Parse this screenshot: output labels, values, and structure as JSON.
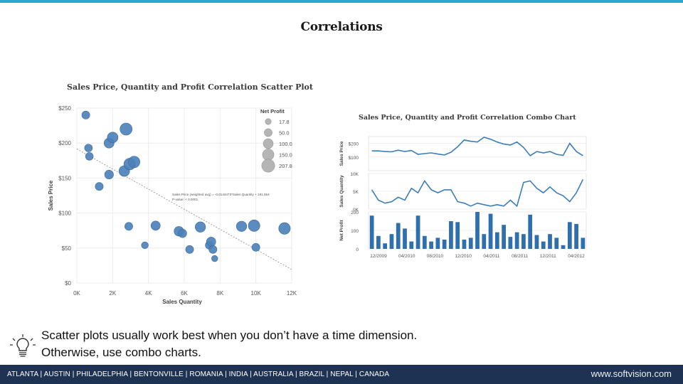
{
  "slide": {
    "title": "Correlations",
    "caption_line1": "Scatter plots usually work best when you don’t have a time dimension.",
    "caption_line2": "Otherwise, use combo charts."
  },
  "footer": {
    "cities": "ATLANTA | AUSTIN | PHILADELPHIA | BENTONVILLE | ROMANIA | INDIA | AUSTRALIA | BRAZIL | NEPAL | CANADA",
    "website": "www.softvision.com",
    "background": "#1e3353"
  },
  "theme": {
    "accent_bar": "#2aa8cf",
    "marker": "#4a80b8",
    "bar": "#2f6fae",
    "line": "#3a7dbd"
  },
  "icons": {
    "caption_icon": "lightbulb-icon"
  },
  "chart_data": [
    {
      "type": "scatter",
      "title": "Sales Price, Quantity and Profit Correlation Scatter Plot",
      "xlabel": "Sales Quantity",
      "ylabel": "Sales Price",
      "xlim": [
        0,
        12000
      ],
      "ylim": [
        0,
        250
      ],
      "xticks": [
        "0K",
        "2K",
        "4K",
        "6K",
        "8K",
        "10K",
        "12K"
      ],
      "yticks": [
        "$0",
        "$50",
        "$100",
        "$150",
        "$200",
        "$250"
      ],
      "grid": true,
      "legend": {
        "title": "Net Profit",
        "placement": "top-right",
        "entries": [
          {
            "label": "17.8",
            "value": 17.8
          },
          {
            "label": "50.0",
            "value": 50
          },
          {
            "label": "100.0",
            "value": 100
          },
          {
            "label": "150.0",
            "value": 150
          },
          {
            "label": "207.8",
            "value": 207.8
          }
        ]
      },
      "trend_annotation": [
        "Sales Price (weighted avg) = -0.0143473*Sales Quantity + 191.554",
        "P-value: < 0.0001"
      ],
      "trend": {
        "intercept": 191.554,
        "slope": -0.0143473
      },
      "points": [
        {
          "x": 500,
          "y": 240,
          "profit": 50
        },
        {
          "x": 650,
          "y": 193,
          "profit": 45
        },
        {
          "x": 700,
          "y": 181,
          "profit": 45
        },
        {
          "x": 1250,
          "y": 138,
          "profit": 50
        },
        {
          "x": 1800,
          "y": 200,
          "profit": 100
        },
        {
          "x": 2000,
          "y": 208,
          "profit": 120
        },
        {
          "x": 1800,
          "y": 155,
          "profit": 70
        },
        {
          "x": 2650,
          "y": 160,
          "profit": 120
        },
        {
          "x": 2750,
          "y": 220,
          "profit": 170
        },
        {
          "x": 2950,
          "y": 170,
          "profit": 150
        },
        {
          "x": 3200,
          "y": 173,
          "profit": 150
        },
        {
          "x": 2900,
          "y": 81,
          "profit": 50
        },
        {
          "x": 3800,
          "y": 54,
          "profit": 30
        },
        {
          "x": 4400,
          "y": 82,
          "profit": 80
        },
        {
          "x": 5700,
          "y": 74,
          "profit": 90
        },
        {
          "x": 5900,
          "y": 71,
          "profit": 60
        },
        {
          "x": 6300,
          "y": 48,
          "profit": 50
        },
        {
          "x": 6900,
          "y": 80,
          "profit": 110
        },
        {
          "x": 7400,
          "y": 54,
          "profit": 50
        },
        {
          "x": 7500,
          "y": 59,
          "profit": 80
        },
        {
          "x": 7600,
          "y": 48,
          "profit": 50
        },
        {
          "x": 7700,
          "y": 35,
          "profit": 20
        },
        {
          "x": 9200,
          "y": 81,
          "profit": 110
        },
        {
          "x": 9900,
          "y": 82,
          "profit": 150
        },
        {
          "x": 10000,
          "y": 51,
          "profit": 50
        },
        {
          "x": 11600,
          "y": 78,
          "profit": 150
        }
      ]
    },
    {
      "type": "line",
      "title": "Sales Price, Quantity and Profit Correlation Combo Chart",
      "x_tick_labels": [
        "12/2009",
        "04/2010",
        "08/2010",
        "12/2010",
        "04/2011",
        "08/2011",
        "12/2011",
        "04/2012"
      ],
      "series": [
        {
          "name": "Sales Price",
          "type": "line",
          "ylim": [
            0,
            250
          ],
          "yticks": [
            "$200",
            "$100"
          ],
          "values": [
            145,
            145,
            140,
            138,
            150,
            140,
            148,
            120,
            125,
            130,
            122,
            115,
            135,
            175,
            225,
            215,
            210,
            245,
            230,
            210,
            195,
            188,
            210,
            170,
            110,
            140,
            130,
            140,
            120,
            112,
            200,
            140,
            110
          ]
        },
        {
          "name": "Sales Quantity",
          "type": "line",
          "ylim": [
            0,
            12000
          ],
          "yticks": [
            "10K",
            "5K",
            "0K"
          ],
          "values": [
            6500,
            3000,
            2000,
            2500,
            4000,
            3000,
            7000,
            5500,
            9500,
            6500,
            5500,
            6500,
            6500,
            2500,
            2000,
            1000,
            2000,
            1500,
            1000,
            1500,
            1000,
            3000,
            1000,
            9000,
            9500,
            7000,
            5500,
            7500,
            5500,
            4500,
            2500,
            5500,
            10000
          ]
        },
        {
          "name": "Net Profit",
          "type": "bar",
          "ylim": [
            0,
            200
          ],
          "yticks": [
            "200",
            "100",
            "0"
          ],
          "values": [
            180,
            70,
            30,
            80,
            140,
            110,
            40,
            180,
            70,
            40,
            60,
            50,
            150,
            145,
            50,
            60,
            200,
            80,
            190,
            90,
            130,
            65,
            90,
            80,
            185,
            75,
            40,
            80,
            60,
            20,
            145,
            135,
            60
          ]
        }
      ]
    }
  ]
}
